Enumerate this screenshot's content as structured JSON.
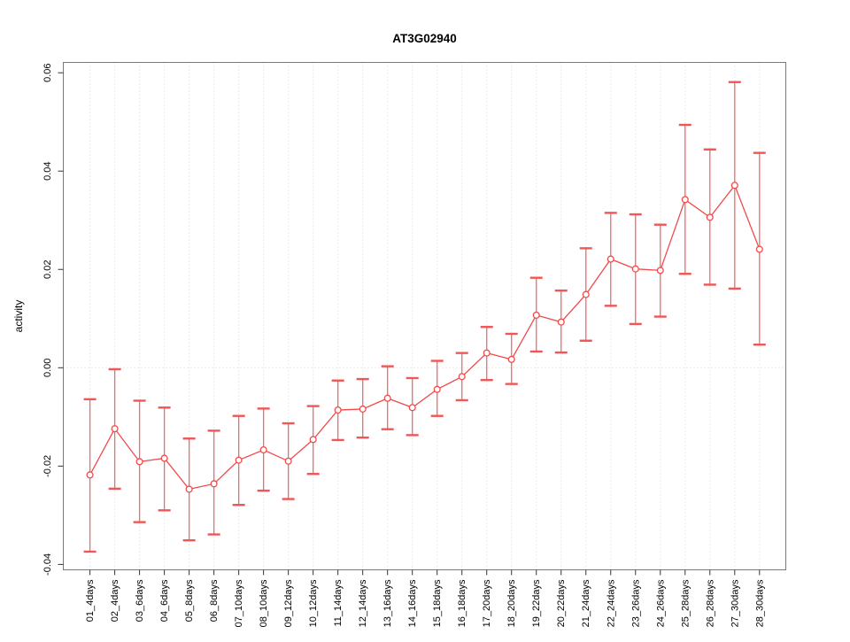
{
  "figure": {
    "background": "#ffffff"
  },
  "chart_data": {
    "type": "line",
    "error_bars": true,
    "marker": "open-circle",
    "title": "AT3G02940",
    "xlabel": "",
    "ylabel": "activity",
    "legend": "none",
    "grid": {
      "vertical_dotted_per_category": true,
      "horizontal_dotted_zero_line": true
    },
    "ylim": [
      -0.0411,
      0.0621
    ],
    "yticks": {
      "values": [
        -0.04,
        -0.02,
        0,
        0.02,
        0.04,
        0.06
      ],
      "labels": [
        "-0.04",
        "-0.02",
        "0.00",
        "0.02",
        "0.04",
        "0.06"
      ]
    },
    "categories": [
      "01_4days",
      "02_4days",
      "03_6days",
      "04_6days",
      "05_8days",
      "06_8days",
      "07_10days",
      "08_10days",
      "09_12days",
      "10_12days",
      "11_14days",
      "12_14days",
      "13_16days",
      "14_16days",
      "15_18days",
      "16_18days",
      "17_20days",
      "18_20days",
      "19_22days",
      "20_22days",
      "21_24days",
      "22_24days",
      "23_26days",
      "24_26days",
      "25_28days",
      "26_28days",
      "27_30days",
      "28_30days"
    ],
    "series": [
      {
        "name": "AT3G02940",
        "values": [
          -0.0218,
          -0.0124,
          -0.0191,
          -0.0184,
          -0.0247,
          -0.0236,
          -0.0188,
          -0.0167,
          -0.019,
          -0.0146,
          -0.0086,
          -0.0084,
          -0.0062,
          -0.0081,
          -0.0044,
          -0.0018,
          0.003,
          0.0017,
          0.0107,
          0.0093,
          0.0149,
          0.0221,
          0.0201,
          0.0198,
          0.0342,
          0.0306,
          0.0371,
          0.0241
        ],
        "upper": [
          -0.0064,
          -0.0003,
          -0.0067,
          -0.0081,
          -0.0144,
          -0.0128,
          -0.0098,
          -0.0083,
          -0.0113,
          -0.0078,
          -0.0026,
          -0.0023,
          0.0003,
          -0.0021,
          0.0014,
          0.003,
          0.0083,
          0.0069,
          0.0183,
          0.0157,
          0.0243,
          0.0315,
          0.0312,
          0.0291,
          0.0494,
          0.0444,
          0.0581,
          0.0437
        ],
        "lower": [
          -0.0374,
          -0.0246,
          -0.0314,
          -0.029,
          -0.0351,
          -0.0339,
          -0.0279,
          -0.025,
          -0.0267,
          -0.0216,
          -0.0147,
          -0.0142,
          -0.0125,
          -0.0137,
          -0.0098,
          -0.0066,
          -0.0025,
          -0.0033,
          0.0033,
          0.0031,
          0.0055,
          0.0126,
          0.0089,
          0.0104,
          0.0191,
          0.0169,
          0.0161,
          0.0047
        ]
      }
    ],
    "colors": {
      "series": "#ef4b4b",
      "errorbar_stem": "#f26b6b",
      "errorbar_cap": "#f15555",
      "marker_fill": "#ffffff",
      "grid": "#d9d9d9",
      "frame": "#7a7a7a",
      "tick": "#333333",
      "text": "#000000"
    }
  }
}
